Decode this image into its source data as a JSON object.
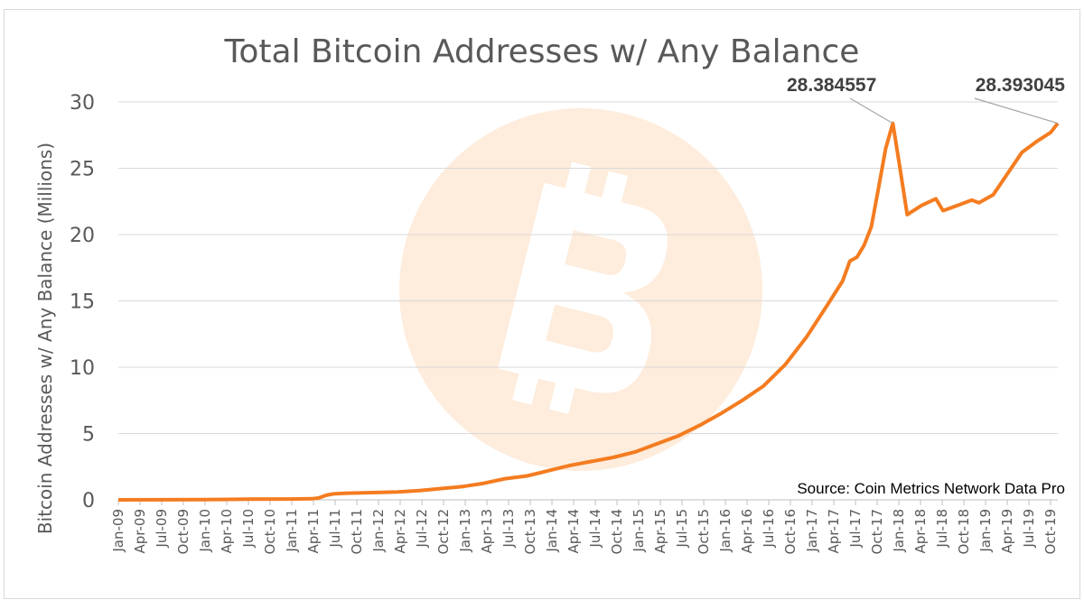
{
  "chart_data": {
    "type": "line",
    "title": "Total Bitcoin Addresses w/ Any Balance",
    "ylabel": "Bitcoin Addresses w/ Any Balance (Millions)",
    "xlabel": "",
    "ylim": [
      0,
      30
    ],
    "yticks": [
      0,
      5,
      10,
      15,
      20,
      25,
      30
    ],
    "xlim": [
      "2009-01",
      "2019-12"
    ],
    "x_tick_labels": [
      "Jan-09",
      "Apr-09",
      "Jul-09",
      "Oct-09",
      "Jan-10",
      "Apr-10",
      "Jul-10",
      "Oct-10",
      "Jan-11",
      "Apr-11",
      "Jul-11",
      "Oct-11",
      "Jan-12",
      "Apr-12",
      "Jul-12",
      "Oct-12",
      "Jan-13",
      "Apr-13",
      "Jul-13",
      "Oct-13",
      "Jan-14",
      "Apr-14",
      "Jul-14",
      "Oct-14",
      "Jan-15",
      "Apr-15",
      "Jul-15",
      "Oct-15",
      "Jan-16",
      "Apr-16",
      "Jul-16",
      "Oct-16",
      "Jan-17",
      "Apr-17",
      "Jul-17",
      "Oct-17",
      "Jan-18",
      "Apr-18",
      "Jul-18",
      "Oct-18",
      "Jan-19",
      "Apr-19",
      "Jul-19",
      "Oct-19"
    ],
    "grid": true,
    "series": [
      {
        "color": "#f47c20",
        "points": [
          [
            "2009-01",
            0.0
          ],
          [
            "2010-01",
            0.02
          ],
          [
            "2010-07",
            0.05
          ],
          [
            "2011-01",
            0.06
          ],
          [
            "2011-04",
            0.08
          ],
          [
            "2011-05",
            0.15
          ],
          [
            "2011-06",
            0.35
          ],
          [
            "2011-07",
            0.45
          ],
          [
            "2011-09",
            0.5
          ],
          [
            "2012-01",
            0.55
          ],
          [
            "2012-04",
            0.6
          ],
          [
            "2012-07",
            0.7
          ],
          [
            "2012-10",
            0.85
          ],
          [
            "2013-01",
            1.0
          ],
          [
            "2013-04",
            1.25
          ],
          [
            "2013-07",
            1.6
          ],
          [
            "2013-10",
            1.8
          ],
          [
            "2014-01",
            2.2
          ],
          [
            "2014-04",
            2.6
          ],
          [
            "2014-07",
            2.9
          ],
          [
            "2014-10",
            3.2
          ],
          [
            "2015-01",
            3.6
          ],
          [
            "2015-04",
            4.2
          ],
          [
            "2015-07",
            4.8
          ],
          [
            "2015-10",
            5.6
          ],
          [
            "2016-01",
            6.5
          ],
          [
            "2016-04",
            7.5
          ],
          [
            "2016-07",
            8.6
          ],
          [
            "2016-10",
            10.2
          ],
          [
            "2017-01",
            12.3
          ],
          [
            "2017-04",
            14.8
          ],
          [
            "2017-06",
            16.5
          ],
          [
            "2017-07",
            18.0
          ],
          [
            "2017-08",
            18.3
          ],
          [
            "2017-09",
            19.2
          ],
          [
            "2017-10",
            20.6
          ],
          [
            "2017-11",
            23.5
          ],
          [
            "2017-12",
            26.5
          ],
          [
            "2018-01",
            28.384557
          ],
          [
            "2018-02",
            25.0
          ],
          [
            "2018-03",
            21.5
          ],
          [
            "2018-05",
            22.2
          ],
          [
            "2018-07",
            22.7
          ],
          [
            "2018-08",
            21.8
          ],
          [
            "2018-10",
            22.2
          ],
          [
            "2018-12",
            22.6
          ],
          [
            "2019-01",
            22.4
          ],
          [
            "2019-03",
            23.0
          ],
          [
            "2019-05",
            24.6
          ],
          [
            "2019-07",
            26.2
          ],
          [
            "2019-09",
            27.0
          ],
          [
            "2019-11",
            27.7
          ],
          [
            "2019-12",
            28.393045
          ]
        ]
      }
    ],
    "annotations": [
      {
        "text": "28.384557",
        "x": "2018-01",
        "y": 28.384557
      },
      {
        "text": "28.393045",
        "x": "2019-12",
        "y": 28.393045
      }
    ],
    "watermark": "bitcoin-logo-icon",
    "source_note": "Source: Coin Metrics Network Data Pro"
  }
}
